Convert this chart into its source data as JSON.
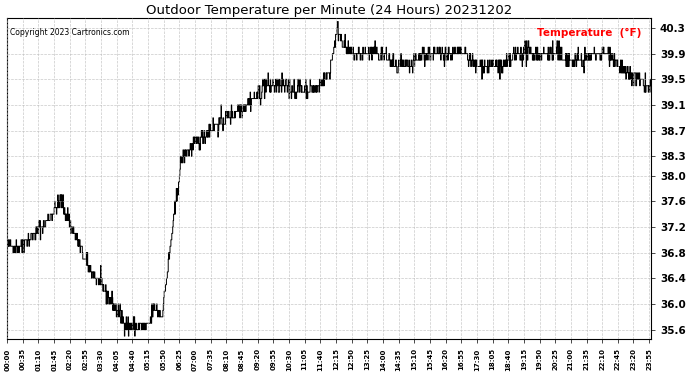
{
  "title": "Outdoor Temperature per Minute (24 Hours) 20231202",
  "copyright_text": "Copyright 2023 Cartronics.com",
  "legend_label": "Temperature  (°F)",
  "line_color": "#000000",
  "background_color": "white",
  "grid_color": "#bbbbbb",
  "title_color": "black",
  "legend_color": "red",
  "copyright_color": "black",
  "ylim": [
    35.45,
    40.45
  ],
  "yticks": [
    35.6,
    36.0,
    36.4,
    36.8,
    37.2,
    37.6,
    38.0,
    38.3,
    38.7,
    39.1,
    39.5,
    39.9,
    40.3
  ],
  "figsize": [
    6.9,
    3.75
  ],
  "dpi": 100
}
